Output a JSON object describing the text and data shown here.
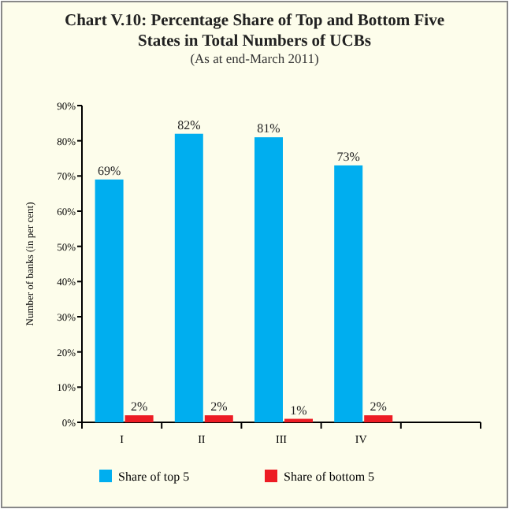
{
  "chart_data": {
    "type": "bar",
    "title": "Chart V.10: Percentage Share of Top and Bottom Five States in Total Numbers of UCBs",
    "subtitle": "(As at end-March 2011)",
    "ylabel": "Number of banks (in per cent)",
    "categories": [
      "I",
      "II",
      "III",
      "IV",
      null
    ],
    "series": [
      {
        "name": "Share of top 5",
        "color": "#00aeef",
        "values": [
          69,
          82,
          81,
          73,
          null
        ],
        "value_labels": [
          "69%",
          "82%",
          "81%",
          "73%",
          null
        ]
      },
      {
        "name": "Share of bottom 5",
        "color": "#ed1c24",
        "values": [
          2,
          2,
          1,
          2,
          null
        ],
        "value_labels": [
          "2%",
          "2%",
          "1%",
          "2%",
          null
        ]
      }
    ],
    "ylim": [
      0,
      90
    ],
    "yticks": [
      {
        "value": 0,
        "label": "0%"
      },
      {
        "value": 10,
        "label": "10%"
      },
      {
        "value": 20,
        "label": "20%"
      },
      {
        "value": 30,
        "label": "30%"
      },
      {
        "value": 40,
        "label": "40%"
      },
      {
        "value": 50,
        "label": "50%"
      },
      {
        "value": 60,
        "label": "60%"
      },
      {
        "value": 70,
        "label": "70%"
      },
      {
        "value": 80,
        "label": "80%"
      },
      {
        "value": 90,
        "label": "90%"
      }
    ],
    "grid": false,
    "legend": "bottom"
  }
}
